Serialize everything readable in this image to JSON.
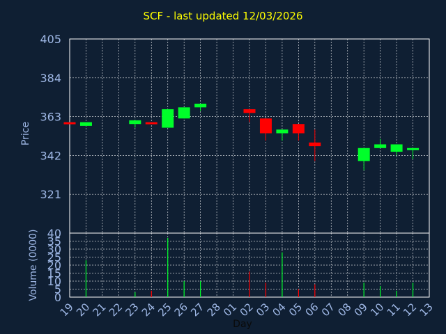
{
  "title": "SCF - last updated 12/03/2026",
  "colors": {
    "background": "#0f1f33",
    "axis_text": "#9fb8e6",
    "grid": "#ffffff",
    "up": "#00ff2a",
    "down": "#ff0000",
    "title": "#ffff00"
  },
  "chart_data": [
    {
      "type": "candlestick",
      "ylabel": "Price",
      "ylim": [
        300,
        405
      ],
      "yticks": [
        321,
        342,
        363,
        384,
        405
      ],
      "grid": true,
      "candles": [
        {
          "x": "19",
          "open": 360,
          "close": 359,
          "high": 360,
          "low": 359
        },
        {
          "x": "20",
          "open": 358,
          "close": 360,
          "high": 360,
          "low": 358
        },
        {
          "x": "23",
          "open": 359,
          "close": 361,
          "high": 361,
          "low": 357
        },
        {
          "x": "24",
          "open": 360,
          "close": 359,
          "high": 360,
          "low": 359
        },
        {
          "x": "25",
          "open": 357,
          "close": 367,
          "high": 367,
          "low": 357
        },
        {
          "x": "26",
          "open": 362,
          "close": 368,
          "high": 368,
          "low": 362
        },
        {
          "x": "27",
          "open": 368,
          "close": 370,
          "high": 370,
          "low": 366
        },
        {
          "x": "02",
          "open": 367,
          "close": 365,
          "high": 367,
          "low": 360
        },
        {
          "x": "03",
          "open": 362,
          "close": 354,
          "high": 362,
          "low": 350
        },
        {
          "x": "04",
          "open": 354,
          "close": 356,
          "high": 356,
          "low": 350
        },
        {
          "x": "05",
          "open": 359,
          "close": 354,
          "high": 359,
          "low": 350
        },
        {
          "x": "06",
          "open": 349,
          "close": 347,
          "high": 356,
          "low": 339
        },
        {
          "x": "09",
          "open": 339,
          "close": 346,
          "high": 346,
          "low": 334
        },
        {
          "x": "10",
          "open": 346,
          "close": 348,
          "high": 351,
          "low": 346
        },
        {
          "x": "11",
          "open": 344,
          "close": 348,
          "high": 348,
          "low": 342
        },
        {
          "x": "12",
          "open": 345,
          "close": 346,
          "high": 346,
          "low": 340
        }
      ]
    },
    {
      "type": "bar",
      "ylabel": "Volume (0000)",
      "ylim": [
        0,
        40
      ],
      "yticks": [
        0,
        5,
        10,
        15,
        20,
        25,
        30,
        35,
        40
      ],
      "xlabel": "Day",
      "categories": [
        "19",
        "20",
        "21",
        "22",
        "23",
        "24",
        "25",
        "26",
        "27",
        "28",
        "01",
        "02",
        "03",
        "04",
        "05",
        "06",
        "07",
        "08",
        "09",
        "10",
        "11",
        "12",
        "13"
      ],
      "values": [
        0,
        23,
        0,
        0,
        3,
        4,
        37,
        10,
        10,
        0,
        0,
        16,
        9,
        28,
        5,
        8,
        0,
        0,
        9,
        7,
        4,
        9,
        0
      ],
      "directions": [
        "down",
        "up",
        "",
        "",
        "up",
        "down",
        "up",
        "up",
        "up",
        "",
        "",
        "down",
        "down",
        "up",
        "down",
        "down",
        "",
        "",
        "up",
        "up",
        "up",
        "up",
        ""
      ]
    }
  ]
}
